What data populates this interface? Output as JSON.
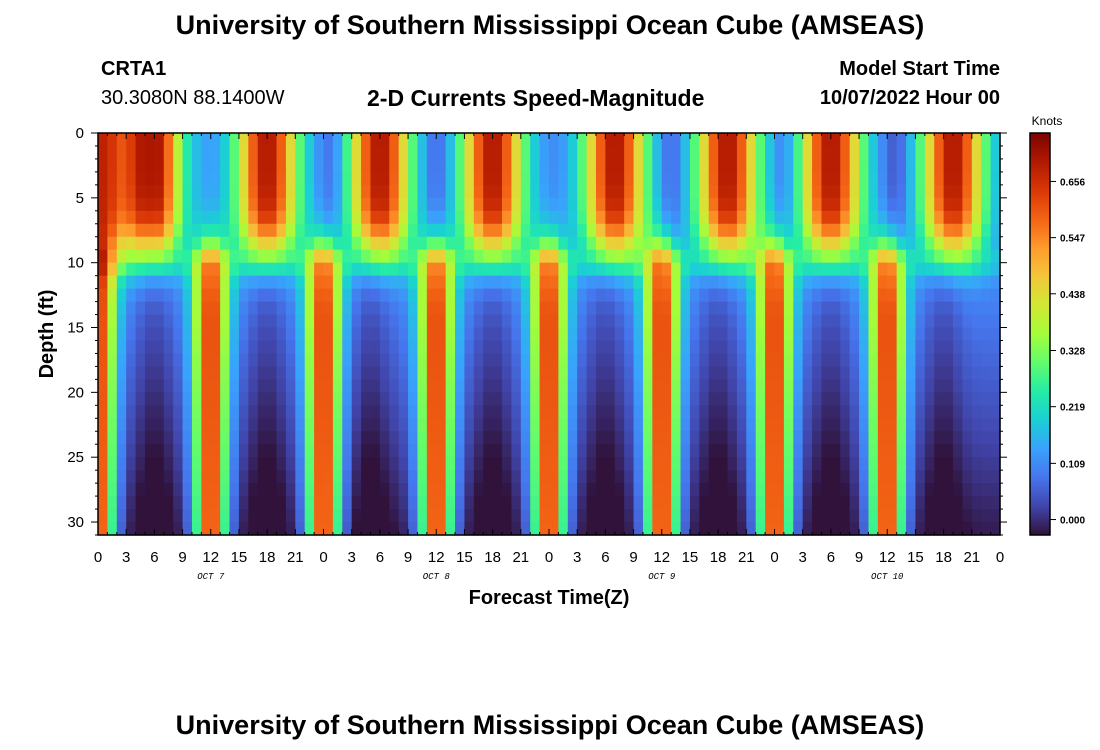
{
  "header": {
    "title": "University of Southern Mississippi Ocean Cube (AMSEAS)",
    "station_id": "CRTA1",
    "station_coords": "30.3080N  88.1400W",
    "chart_subtitle": "2-D Currents Speed-Magnitude",
    "model_start_label": "Model Start Time",
    "model_start_value": "10/07/2022 Hour 00"
  },
  "footer": {
    "title": "University of Southern Mississippi Ocean Cube (AMSEAS)"
  },
  "chart_data": {
    "type": "heatmap",
    "title": "2-D Currents Speed-Magnitude",
    "xlabel": "Forecast Time(Z)",
    "ylabel": "Depth (ft)",
    "x_range_hours": [
      0,
      96
    ],
    "y_range_ft": [
      0,
      31
    ],
    "x_tick_labels": [
      "0",
      "3",
      "6",
      "9",
      "12",
      "15",
      "18",
      "21",
      "0",
      "3",
      "6",
      "9",
      "12",
      "15",
      "18",
      "21",
      "0",
      "3",
      "6",
      "9",
      "12",
      "15",
      "18",
      "21",
      "0",
      "3",
      "6",
      "9",
      "12",
      "15",
      "18",
      "21",
      "0"
    ],
    "day_labels": [
      {
        "label": "OCT 7",
        "hour": 12
      },
      {
        "label": "OCT 8",
        "hour": 36
      },
      {
        "label": "OCT 9",
        "hour": 60
      },
      {
        "label": "OCT 10",
        "hour": 84
      }
    ],
    "y_ticks": [
      0,
      5,
      10,
      15,
      20,
      25,
      30
    ],
    "colorbar": {
      "label": "Knots",
      "ticks": [
        "0.000",
        "0.109",
        "0.219",
        "0.328",
        "0.438",
        "0.547",
        "0.656"
      ],
      "range": [
        -0.03,
        0.75
      ]
    },
    "colors": {
      "scale": [
        "#30123b",
        "#4145ab",
        "#4675ed",
        "#39a2fc",
        "#1bcfd4",
        "#24eca6",
        "#61fc6c",
        "#a4fc3b",
        "#d1e834",
        "#f3c63a",
        "#fe9b2d",
        "#f36315",
        "#d93806",
        "#b11901",
        "#7a0403"
      ]
    },
    "surface_peaks_hours": [
      0,
      6,
      18,
      30,
      42,
      55,
      67,
      78,
      91
    ],
    "surface_troughs_hours": [
      2,
      9,
      25,
      36,
      61,
      73,
      85
    ],
    "lower_peaks_hours": [
      0,
      12,
      24,
      36,
      48,
      60,
      72,
      84
    ],
    "lower_troughs_hours": [
      6,
      18,
      29,
      42,
      54,
      66,
      78,
      90
    ]
  }
}
